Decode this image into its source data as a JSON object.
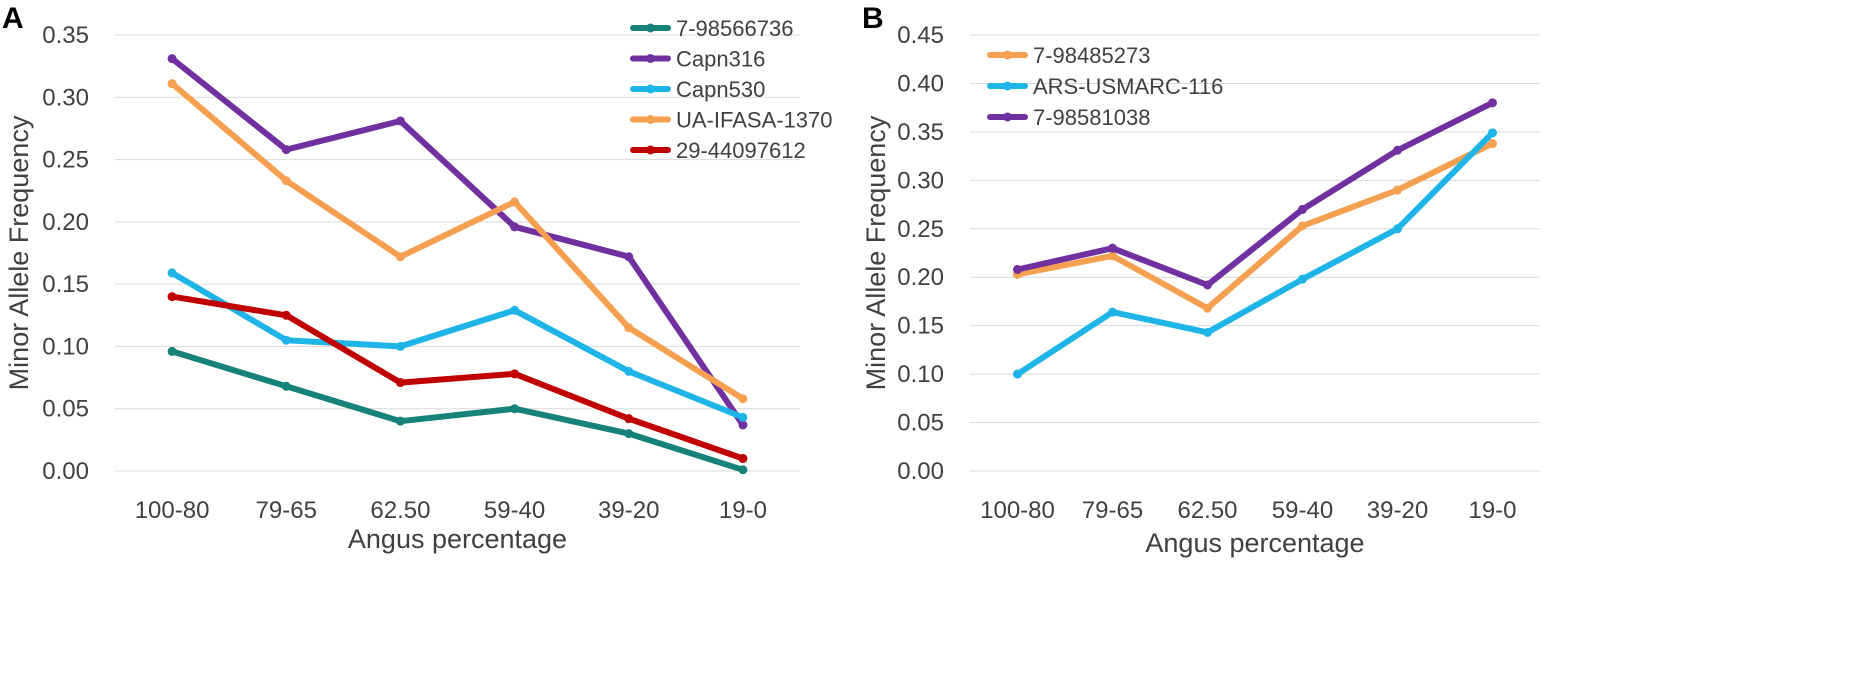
{
  "chart_data": [
    {
      "type": "line",
      "panel_label": "A",
      "xlabel": "Angus percentage",
      "ylabel": "Minor Allele Frequency",
      "categories": [
        "100-80",
        "79-65",
        "62.50",
        "59-40",
        "39-20",
        "19-0"
      ],
      "ylim": [
        0,
        0.35
      ],
      "yticks": [
        "0.00",
        "0.05",
        "0.10",
        "0.15",
        "0.20",
        "0.25",
        "0.30",
        "0.35"
      ],
      "grid": true,
      "legend_position": "top-right",
      "series": [
        {
          "name": "7-98566736",
          "color": "#17827a",
          "values": [
            0.096,
            0.068,
            0.04,
            0.05,
            0.03,
            0.001
          ]
        },
        {
          "name": "Capn316",
          "color": "#7030a0",
          "values": [
            0.331,
            0.258,
            0.281,
            0.196,
            0.172,
            0.037
          ]
        },
        {
          "name": "Capn530",
          "color": "#1fb4e8",
          "values": [
            0.159,
            0.105,
            0.1,
            0.129,
            0.08,
            0.043
          ]
        },
        {
          "name": "UA-IFASA-1370",
          "color": "#f4a050",
          "values": [
            0.311,
            0.233,
            0.172,
            0.216,
            0.115,
            0.058
          ]
        },
        {
          "name": "29-44097612",
          "color": "#c00000",
          "values": [
            0.14,
            0.125,
            0.071,
            0.078,
            0.042,
            0.01
          ]
        }
      ]
    },
    {
      "type": "line",
      "panel_label": "B",
      "xlabel": "Angus percentage",
      "ylabel": "Minor Allele Frequency",
      "categories": [
        "100-80",
        "79-65",
        "62.50",
        "59-40",
        "39-20",
        "19-0"
      ],
      "ylim": [
        0,
        0.45
      ],
      "yticks": [
        "0.00",
        "0.05",
        "0.10",
        "0.15",
        "0.20",
        "0.25",
        "0.30",
        "0.35",
        "0.40",
        "0.45"
      ],
      "grid": true,
      "legend_position": "top-left",
      "series": [
        {
          "name": "7-98485273",
          "color": "#f4a050",
          "values": [
            0.203,
            0.222,
            0.168,
            0.253,
            0.29,
            0.338
          ]
        },
        {
          "name": "ARS-USMARC-116",
          "color": "#1fb4e8",
          "values": [
            0.1,
            0.164,
            0.143,
            0.198,
            0.25,
            0.349
          ]
        },
        {
          "name": "7-98581038",
          "color": "#7030a0",
          "values": [
            0.208,
            0.23,
            0.192,
            0.27,
            0.331,
            0.38
          ]
        }
      ]
    }
  ]
}
